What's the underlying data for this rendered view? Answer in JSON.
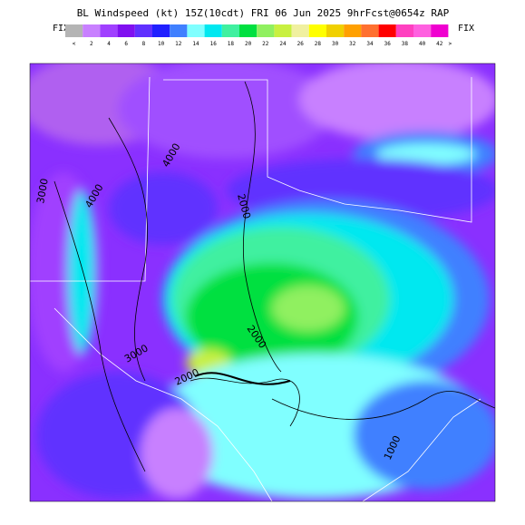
{
  "header": {
    "title": "BL Windspeed (kt) 15Z(10cdt) FRI 06 Jun 2025 9hrFcst@0654z RAP",
    "fix_left": "FIX",
    "fix_right": "FIX"
  },
  "colorbar": [
    {
      "label": "<",
      "color": "#b4b4b4"
    },
    {
      "label": "2",
      "color": "#c880ff"
    },
    {
      "label": "4",
      "color": "#a040ff"
    },
    {
      "label": "6",
      "color": "#8010f0"
    },
    {
      "label": "8",
      "color": "#6030ff"
    },
    {
      "label": "10",
      "color": "#2020ff"
    },
    {
      "label": "12",
      "color": "#4080ff"
    },
    {
      "label": "14",
      "color": "#80ffff"
    },
    {
      "label": "16",
      "color": "#00e8f0"
    },
    {
      "label": "18",
      "color": "#40f0a0"
    },
    {
      "label": "20",
      "color": "#00e040"
    },
    {
      "label": "22",
      "color": "#90f060"
    },
    {
      "label": "24",
      "color": "#c8f040"
    },
    {
      "label": "26",
      "color": "#f0f0a0"
    },
    {
      "label": "28",
      "color": "#ffff00"
    },
    {
      "label": "30",
      "color": "#f0d000"
    },
    {
      "label": "32",
      "color": "#ffa000"
    },
    {
      "label": "34",
      "color": "#ff7030"
    },
    {
      "label": "36",
      "color": "#ff0000"
    },
    {
      "label": "38",
      "color": "#ff40c0"
    },
    {
      "label": "40",
      "color": "#ff60e0"
    },
    {
      "label": "42",
      "color": "#f000d0"
    },
    {
      "label": ">",
      "color": null
    }
  ],
  "contour_labels": [
    "4000",
    "3000",
    "4000",
    "2000",
    "3000",
    "2000",
    "2000",
    "1000"
  ]
}
